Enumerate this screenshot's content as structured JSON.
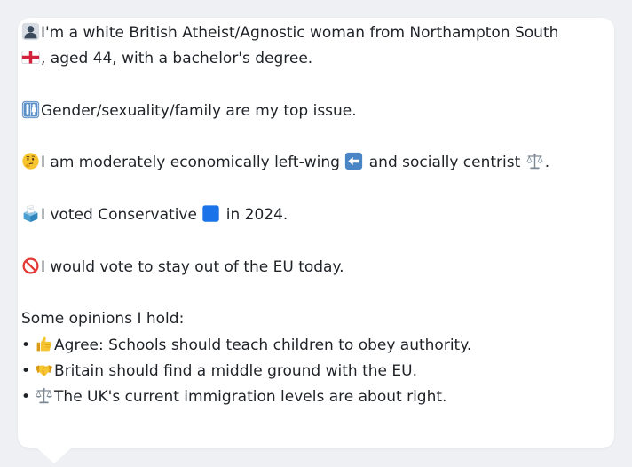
{
  "profile": {
    "intro_icon": "person-silhouette-icon",
    "intro_text_1": "I'm a white British Atheist/Agnostic woman from Northampton South",
    "flag_icon": "england-flag-icon",
    "intro_text_2": ", aged 44, with a bachelor's degree.",
    "issue_icon": "restroom-gender-icon",
    "issue_text": "Gender/sexuality/family are my top issue.",
    "stance_icon": "thinking-face-icon",
    "stance_text_1": "I am moderately economically left-wing",
    "left_arrow_icon": "left-arrow-icon",
    "stance_text_2": "and socially centrist",
    "scales_icon": "balance-scale-icon",
    "stance_text_3": ".",
    "vote_icon": "ballot-box-icon",
    "vote_text_1": "I voted Conservative",
    "blue_square_icon": "blue-square-icon",
    "vote_text_2": "in 2024.",
    "eu_icon": "prohibited-icon",
    "eu_text": "I would vote to stay out of the EU today.",
    "opinions_heading": "Some opinions I hold:",
    "opinions": [
      {
        "bullet": "•",
        "icon": "thumbs-up-icon",
        "text": "Agree: Schools should teach children to obey authority."
      },
      {
        "bullet": "•",
        "icon": "handshake-icon",
        "text": "Britain should find a middle ground with the EU."
      },
      {
        "bullet": "•",
        "icon": "balance-scale-icon",
        "text": "The UK's current immigration levels are about right."
      }
    ]
  },
  "colors": {
    "background": "#eef0f3",
    "card": "#ffffff",
    "text": "#1f2328",
    "accent_blue": "#1a73e8"
  }
}
